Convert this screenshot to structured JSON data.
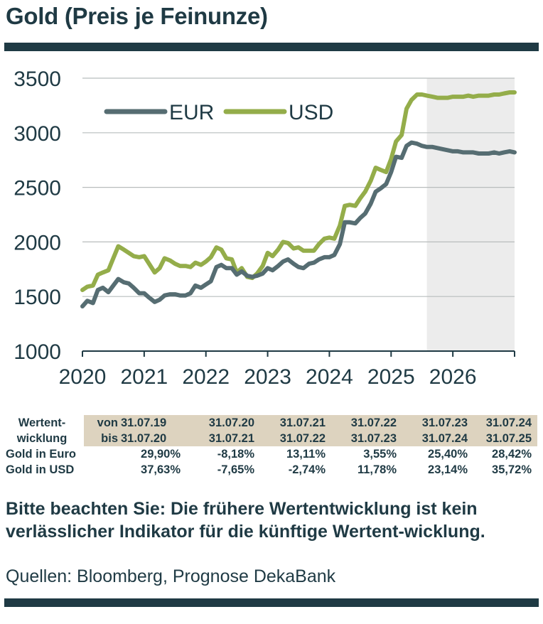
{
  "header": {
    "title": "Gold (Preis je Feinunze)"
  },
  "chart_data": {
    "type": "line",
    "title": "Gold (Preis je Feinunze)",
    "xlabel": "",
    "ylabel": "",
    "ylim": [
      1000,
      3500
    ],
    "yticks": [
      "1000",
      "1500",
      "2000",
      "2500",
      "3000",
      "3500"
    ],
    "xticks": [
      "2020",
      "2021",
      "2022",
      "2023",
      "2024",
      "2025",
      "2026"
    ],
    "xlim": [
      2020,
      2027
    ],
    "grid": "horizontal",
    "legend": "top-left",
    "forecast_region": [
      2025.58,
      2027
    ],
    "colors": {
      "EUR": "#566d72",
      "USD": "#94ad4a",
      "forecast": "#ececec"
    },
    "series": [
      {
        "name": "EUR",
        "x": [
          2020.0,
          2020.08,
          2020.17,
          2020.25,
          2020.33,
          2020.42,
          2020.5,
          2020.58,
          2020.67,
          2020.75,
          2020.83,
          2020.92,
          2021.0,
          2021.08,
          2021.17,
          2021.25,
          2021.33,
          2021.42,
          2021.5,
          2021.58,
          2021.67,
          2021.75,
          2021.83,
          2021.92,
          2022.0,
          2022.08,
          2022.17,
          2022.25,
          2022.33,
          2022.42,
          2022.5,
          2022.58,
          2022.67,
          2022.75,
          2022.83,
          2022.92,
          2023.0,
          2023.08,
          2023.17,
          2023.25,
          2023.33,
          2023.42,
          2023.5,
          2023.58,
          2023.67,
          2023.75,
          2023.83,
          2023.92,
          2024.0,
          2024.08,
          2024.17,
          2024.25,
          2024.33,
          2024.42,
          2024.5,
          2024.58,
          2024.67,
          2024.75,
          2024.83,
          2024.92,
          2025.0,
          2025.08,
          2025.17,
          2025.25,
          2025.33,
          2025.42,
          2025.5,
          2025.58,
          2025.67,
          2025.75,
          2025.83,
          2025.92,
          2026.0,
          2026.08,
          2026.17,
          2026.25,
          2026.33,
          2026.42,
          2026.5,
          2026.58,
          2026.67,
          2026.75,
          2026.83,
          2026.92,
          2027.0
        ],
        "values": [
          1410,
          1460,
          1440,
          1560,
          1580,
          1540,
          1600,
          1660,
          1630,
          1620,
          1580,
          1530,
          1530,
          1490,
          1450,
          1470,
          1510,
          1520,
          1520,
          1510,
          1510,
          1530,
          1600,
          1580,
          1610,
          1640,
          1770,
          1790,
          1760,
          1760,
          1700,
          1730,
          1690,
          1680,
          1690,
          1710,
          1760,
          1740,
          1780,
          1820,
          1840,
          1800,
          1770,
          1760,
          1800,
          1810,
          1840,
          1860,
          1860,
          1880,
          1980,
          2180,
          2180,
          2170,
          2220,
          2260,
          2350,
          2460,
          2490,
          2530,
          2640,
          2780,
          2770,
          2880,
          2910,
          2900,
          2880,
          2870,
          2870,
          2860,
          2850,
          2840,
          2830,
          2830,
          2820,
          2820,
          2820,
          2810,
          2810,
          2810,
          2820,
          2810,
          2820,
          2830,
          2820
        ]
      },
      {
        "name": "USD",
        "x": [
          2020.0,
          2020.08,
          2020.17,
          2020.25,
          2020.33,
          2020.42,
          2020.5,
          2020.58,
          2020.67,
          2020.75,
          2020.83,
          2020.92,
          2021.0,
          2021.08,
          2021.17,
          2021.25,
          2021.33,
          2021.42,
          2021.5,
          2021.58,
          2021.67,
          2021.75,
          2021.83,
          2021.92,
          2022.0,
          2022.08,
          2022.17,
          2022.25,
          2022.33,
          2022.42,
          2022.5,
          2022.58,
          2022.67,
          2022.75,
          2022.83,
          2022.92,
          2023.0,
          2023.08,
          2023.17,
          2023.25,
          2023.33,
          2023.42,
          2023.5,
          2023.58,
          2023.67,
          2023.75,
          2023.83,
          2023.92,
          2024.0,
          2024.08,
          2024.17,
          2024.25,
          2024.33,
          2024.42,
          2024.5,
          2024.58,
          2024.67,
          2024.75,
          2024.83,
          2024.92,
          2025.0,
          2025.08,
          2025.17,
          2025.25,
          2025.33,
          2025.42,
          2025.5,
          2025.58,
          2025.67,
          2025.75,
          2025.83,
          2025.92,
          2026.0,
          2026.08,
          2026.17,
          2026.25,
          2026.33,
          2026.42,
          2026.5,
          2026.58,
          2026.67,
          2026.75,
          2026.83,
          2026.92,
          2027.0
        ],
        "values": [
          1560,
          1590,
          1600,
          1700,
          1720,
          1740,
          1850,
          1960,
          1930,
          1900,
          1870,
          1860,
          1870,
          1800,
          1720,
          1760,
          1850,
          1830,
          1800,
          1780,
          1780,
          1770,
          1810,
          1790,
          1820,
          1860,
          1950,
          1930,
          1850,
          1840,
          1720,
          1760,
          1680,
          1670,
          1710,
          1780,
          1900,
          1870,
          1930,
          2000,
          1990,
          1940,
          1950,
          1920,
          1920,
          1920,
          1980,
          2030,
          2040,
          2030,
          2150,
          2330,
          2340,
          2330,
          2400,
          2460,
          2560,
          2680,
          2660,
          2640,
          2760,
          2920,
          2980,
          3220,
          3300,
          3350,
          3350,
          3340,
          3330,
          3320,
          3320,
          3320,
          3330,
          3330,
          3330,
          3340,
          3330,
          3340,
          3340,
          3340,
          3350,
          3350,
          3360,
          3370,
          3370
        ]
      }
    ]
  },
  "performance": {
    "header_label_1": "Wertent-",
    "header_label_2": "wicklung",
    "von_label": "von",
    "bis_label": "bis",
    "from_dates": [
      "31.07.19",
      "31.07.20",
      "31.07.21",
      "31.07.22",
      "31.07.23",
      "31.07.24"
    ],
    "to_dates": [
      "31.07.20",
      "31.07.21",
      "31.07.22",
      "31.07.23",
      "31.07.24",
      "31.07.25"
    ],
    "rows": [
      {
        "label": "Gold in Euro",
        "values": [
          "29,90%",
          "-8,18%",
          "13,11%",
          "3,55%",
          "25,40%",
          "28,42%"
        ]
      },
      {
        "label": "Gold in USD",
        "values": [
          "37,63%",
          "-7,65%",
          "-2,74%",
          "11,78%",
          "23,14%",
          "35,72%"
        ]
      }
    ]
  },
  "footer": {
    "note": "Bitte beachten Sie: Die frühere Wertentwicklung ist kein verlässlicher Indikator für die künftige Wertent-wicklung.",
    "source": "Quellen: Bloomberg, Prognose DekaBank"
  }
}
